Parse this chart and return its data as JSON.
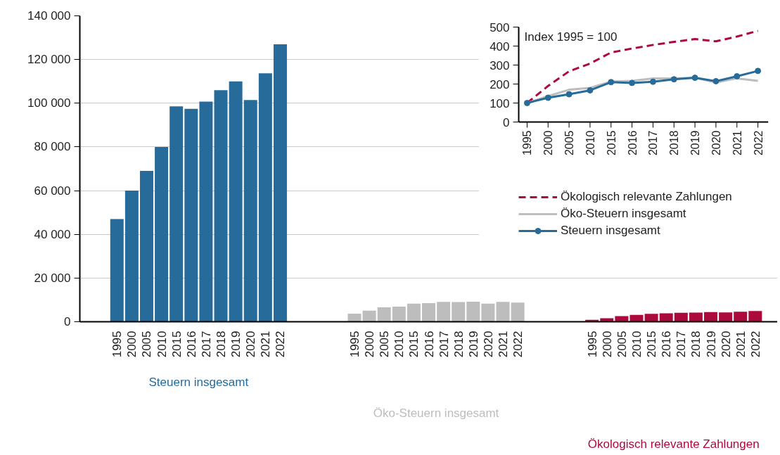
{
  "chart_data": [
    {
      "type": "bar",
      "categories": [
        null,
        null,
        "1995",
        "2000",
        "2005",
        "2010",
        "2015",
        "2016",
        "2017",
        "2018",
        "2019",
        "2020",
        "2021",
        "2022",
        null,
        null,
        null,
        null,
        "1995",
        "2000",
        "2005",
        "2010",
        "2015",
        "2016",
        "2017",
        "2018",
        "2019",
        "2020",
        "2021",
        "2022",
        null,
        null,
        null,
        null,
        "1995",
        "2000",
        "2005",
        "2010",
        "2015",
        "2016",
        "2017",
        "2018",
        "2019",
        "2020",
        "2021",
        "2022",
        null
      ],
      "series": [
        {
          "name": "Steuern insgesamt",
          "color": "#266b99",
          "values": [
            null,
            null,
            47000,
            60000,
            69000,
            80000,
            98600,
            97400,
            100700,
            106000,
            110000,
            101500,
            113700,
            127000,
            null,
            null,
            null,
            null,
            null,
            null,
            null,
            null,
            null,
            null,
            null,
            null,
            null,
            null,
            null,
            null,
            null,
            null,
            null,
            null,
            null,
            null,
            null,
            null,
            null,
            null,
            null,
            null,
            null,
            null,
            null,
            null,
            null
          ]
        },
        {
          "name": "Öko-Steuern insgesamt",
          "color": "#bdbdbd",
          "values": [
            null,
            null,
            null,
            null,
            null,
            null,
            null,
            null,
            null,
            null,
            null,
            null,
            null,
            null,
            null,
            null,
            null,
            null,
            3700,
            5100,
            6600,
            6900,
            8300,
            8500,
            9100,
            9000,
            9200,
            8300,
            9100,
            8800,
            null,
            null,
            null,
            null,
            null,
            null,
            null,
            null,
            null,
            null,
            null,
            null,
            null,
            null,
            null,
            null,
            null
          ]
        },
        {
          "name": "Ökologisch relevante Zahlungen",
          "color": "#ac0a3c",
          "values": [
            null,
            null,
            null,
            null,
            null,
            null,
            null,
            null,
            null,
            null,
            null,
            null,
            null,
            null,
            null,
            null,
            null,
            null,
            null,
            null,
            null,
            null,
            null,
            null,
            null,
            null,
            null,
            null,
            null,
            null,
            null,
            null,
            null,
            null,
            900,
            1600,
            2600,
            3100,
            3600,
            3900,
            4100,
            4200,
            4400,
            4300,
            4600,
            4900,
            null
          ]
        }
      ],
      "ylim": [
        0,
        140000
      ],
      "yticks": [
        {
          "value": 0,
          "label": "0"
        },
        {
          "value": 20000,
          "label": "20 000"
        },
        {
          "value": 40000,
          "label": "40 000"
        },
        {
          "value": 60000,
          "label": "60 000"
        },
        {
          "value": 80000,
          "label": "80 000"
        },
        {
          "value": 100000,
          "label": "100 000"
        },
        {
          "value": 120000,
          "label": "120 000"
        },
        {
          "value": 140000,
          "label": "140 000"
        }
      ],
      "grid": "y"
    },
    {
      "type": "line",
      "annotations": [
        "Index 1995 = 100"
      ],
      "categories": [
        "1995",
        "2000",
        "2005",
        "2010",
        "2015",
        "2016",
        "2017",
        "2018",
        "2019",
        "2020",
        "2021",
        "2022"
      ],
      "series": [
        {
          "name": "Ökologisch relevante Zahlungen",
          "color": "#ac0a3c",
          "line_style": "dashed",
          "marker": "none",
          "values": [
            100,
            190,
            267,
            308,
            366,
            387,
            406,
            422,
            437,
            425,
            450,
            480
          ]
        },
        {
          "name": "Öko-Steuern insgesamt",
          "color": "#bdbdbd",
          "line_style": "solid",
          "marker": "none",
          "values": [
            100,
            136,
            170,
            180,
            213,
            217,
            230,
            230,
            233,
            208,
            230,
            217
          ]
        },
        {
          "name": "Steuern insgesamt",
          "color": "#266b99",
          "line_style": "solid",
          "marker": "circle",
          "values": [
            100,
            128,
            146,
            167,
            210,
            206,
            212,
            225,
            233,
            215,
            241,
            269
          ]
        }
      ],
      "ylim": [
        0,
        500
      ],
      "yticks": [
        0,
        100,
        200,
        300,
        400,
        500
      ],
      "legend": "bottom"
    }
  ]
}
